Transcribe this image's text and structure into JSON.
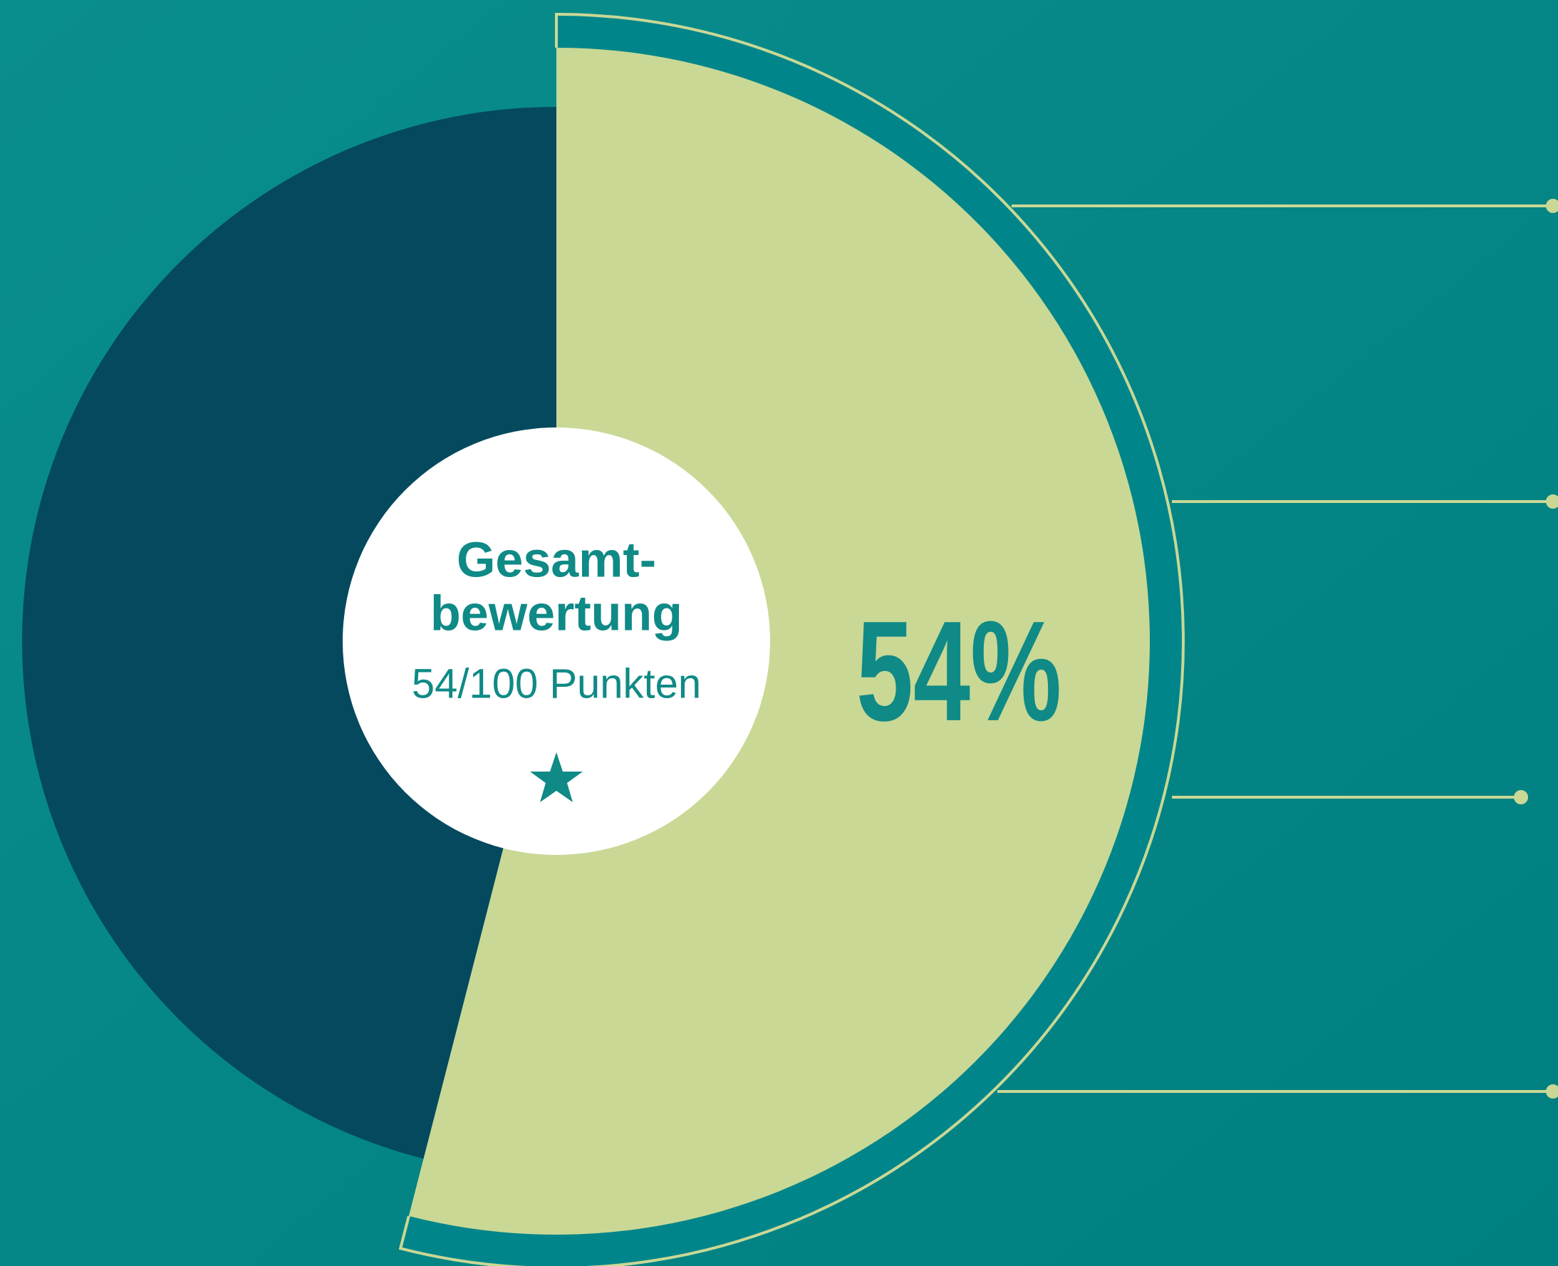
{
  "chart_data": {
    "type": "pie",
    "title": [
      "Gesamt-",
      "bewertung"
    ],
    "subtitle": "54/100 Punkten",
    "values": [
      54,
      46
    ],
    "value_labels": [
      "54%",
      null
    ],
    "colors": [
      "#c9d895",
      "#04495e"
    ]
  }
}
